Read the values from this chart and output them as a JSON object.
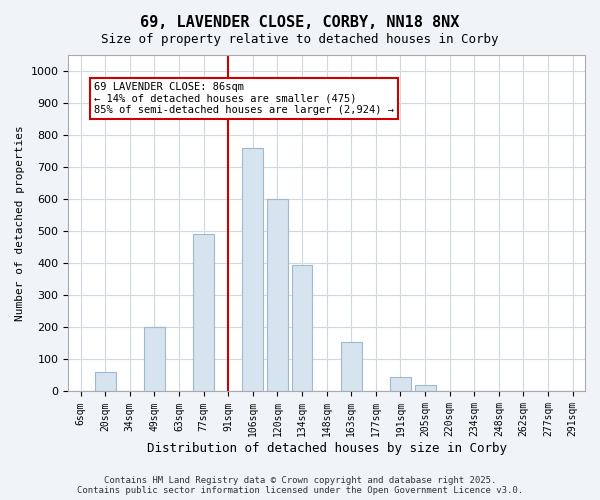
{
  "title": "69, LAVENDER CLOSE, CORBY, NN18 8NX",
  "subtitle": "Size of property relative to detached houses in Corby",
  "xlabel": "Distribution of detached houses by size in Corby",
  "ylabel": "Number of detached properties",
  "categories": [
    "6sqm",
    "20sqm",
    "34sqm",
    "49sqm",
    "63sqm",
    "77sqm",
    "91sqm",
    "106sqm",
    "120sqm",
    "134sqm",
    "148sqm",
    "163sqm",
    "177sqm",
    "191sqm",
    "205sqm",
    "220sqm",
    "234sqm",
    "248sqm",
    "262sqm",
    "277sqm",
    "291sqm"
  ],
  "values": [
    0,
    60,
    0,
    200,
    0,
    490,
    0,
    760,
    600,
    395,
    0,
    155,
    0,
    45,
    20,
    0,
    0,
    0,
    0,
    0,
    0
  ],
  "bar_color": "#d6e4f0",
  "bar_edge_color": "#a0b8cc",
  "vline_x": 6,
  "vline_color": "#cc0000",
  "annotation_text": "69 LAVENDER CLOSE: 86sqm\n← 14% of detached houses are smaller (475)\n85% of semi-detached houses are larger (2,924) →",
  "annotation_box_color": "#ffffff",
  "annotation_box_edge_color": "#cc0000",
  "ylim": [
    0,
    1050
  ],
  "yticks": [
    0,
    100,
    200,
    300,
    400,
    500,
    600,
    700,
    800,
    900,
    1000
  ],
  "footer": "Contains HM Land Registry data © Crown copyright and database right 2025.\nContains public sector information licensed under the Open Government Licence v3.0.",
  "background_color": "#f0f4f8",
  "plot_bg_color": "#ffffff",
  "grid_color": "#d0d8e0"
}
